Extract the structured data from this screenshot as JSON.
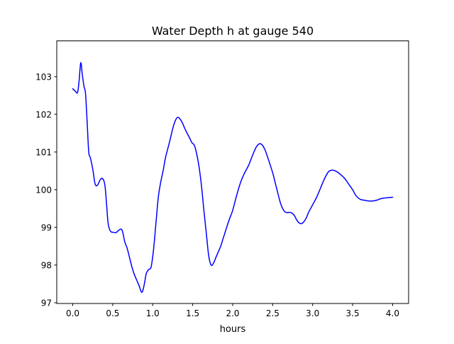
{
  "chart_data": {
    "type": "line",
    "title": "Water Depth h at gauge 540",
    "xlabel": "hours",
    "ylabel": "",
    "xlim": [
      -0.2,
      4.2
    ],
    "ylim": [
      96.98,
      103.95
    ],
    "xticks": [
      {
        "value": 0.0,
        "label": "0.0"
      },
      {
        "value": 0.5,
        "label": "0.5"
      },
      {
        "value": 1.0,
        "label": "1.0"
      },
      {
        "value": 1.5,
        "label": "1.5"
      },
      {
        "value": 2.0,
        "label": "2.0"
      },
      {
        "value": 2.5,
        "label": "2.5"
      },
      {
        "value": 3.0,
        "label": "3.0"
      },
      {
        "value": 3.5,
        "label": "3.5"
      },
      {
        "value": 4.0,
        "label": "4.0"
      }
    ],
    "yticks": [
      {
        "value": 97,
        "label": "97"
      },
      {
        "value": 98,
        "label": "98"
      },
      {
        "value": 99,
        "label": "99"
      },
      {
        "value": 100,
        "label": "100"
      },
      {
        "value": 101,
        "label": "101"
      },
      {
        "value": 102,
        "label": "102"
      },
      {
        "value": 103,
        "label": "103"
      }
    ],
    "grid": false,
    "series": [
      {
        "color": "#0000ff",
        "x": [
          0.0,
          0.03,
          0.06,
          0.08,
          0.1,
          0.12,
          0.14,
          0.16,
          0.18,
          0.2,
          0.22,
          0.25,
          0.28,
          0.31,
          0.34,
          0.37,
          0.4,
          0.42,
          0.44,
          0.46,
          0.48,
          0.51,
          0.54,
          0.58,
          0.61,
          0.63,
          0.65,
          0.68,
          0.71,
          0.74,
          0.77,
          0.8,
          0.83,
          0.86,
          0.88,
          0.9,
          0.92,
          0.95,
          0.98,
          1.01,
          1.04,
          1.07,
          1.1,
          1.13,
          1.16,
          1.19,
          1.22,
          1.25,
          1.28,
          1.31,
          1.34,
          1.37,
          1.4,
          1.43,
          1.46,
          1.49,
          1.52,
          1.55,
          1.58,
          1.61,
          1.64,
          1.67,
          1.7,
          1.73,
          1.76,
          1.79,
          1.82,
          1.85,
          1.88,
          1.91,
          1.94,
          1.97,
          2.0,
          2.05,
          2.1,
          2.15,
          2.2,
          2.25,
          2.3,
          2.35,
          2.4,
          2.45,
          2.5,
          2.53,
          2.56,
          2.59,
          2.62,
          2.65,
          2.68,
          2.71,
          2.74,
          2.77,
          2.8,
          2.83,
          2.86,
          2.89,
          2.92,
          2.95,
          3.0,
          3.05,
          3.1,
          3.15,
          3.2,
          3.25,
          3.3,
          3.35,
          3.4,
          3.45,
          3.5,
          3.53,
          3.56,
          3.6,
          3.65,
          3.7,
          3.75,
          3.8,
          3.85,
          3.9,
          3.95,
          4.0
        ],
        "y": [
          102.68,
          102.62,
          102.58,
          102.9,
          103.37,
          103.05,
          102.75,
          102.55,
          101.8,
          101.0,
          100.85,
          100.55,
          100.15,
          100.12,
          100.25,
          100.3,
          100.15,
          99.7,
          99.15,
          98.95,
          98.88,
          98.87,
          98.86,
          98.93,
          98.95,
          98.83,
          98.62,
          98.45,
          98.2,
          97.95,
          97.75,
          97.6,
          97.45,
          97.28,
          97.35,
          97.55,
          97.78,
          97.88,
          97.95,
          98.4,
          99.1,
          99.8,
          100.2,
          100.5,
          100.85,
          101.1,
          101.35,
          101.62,
          101.82,
          101.92,
          101.88,
          101.78,
          101.63,
          101.5,
          101.38,
          101.25,
          101.18,
          100.95,
          100.6,
          100.1,
          99.45,
          98.85,
          98.25,
          98.0,
          98.05,
          98.2,
          98.35,
          98.5,
          98.7,
          98.9,
          99.1,
          99.28,
          99.45,
          99.85,
          100.2,
          100.45,
          100.65,
          100.92,
          101.15,
          101.22,
          101.08,
          100.78,
          100.45,
          100.2,
          99.95,
          99.7,
          99.52,
          99.42,
          99.39,
          99.4,
          99.38,
          99.32,
          99.2,
          99.12,
          99.1,
          99.15,
          99.25,
          99.4,
          99.6,
          99.8,
          100.05,
          100.3,
          100.48,
          100.52,
          100.48,
          100.4,
          100.3,
          100.15,
          100.0,
          99.88,
          99.8,
          99.74,
          99.72,
          99.7,
          99.7,
          99.72,
          99.76,
          99.78,
          99.79,
          99.8
        ]
      }
    ]
  }
}
